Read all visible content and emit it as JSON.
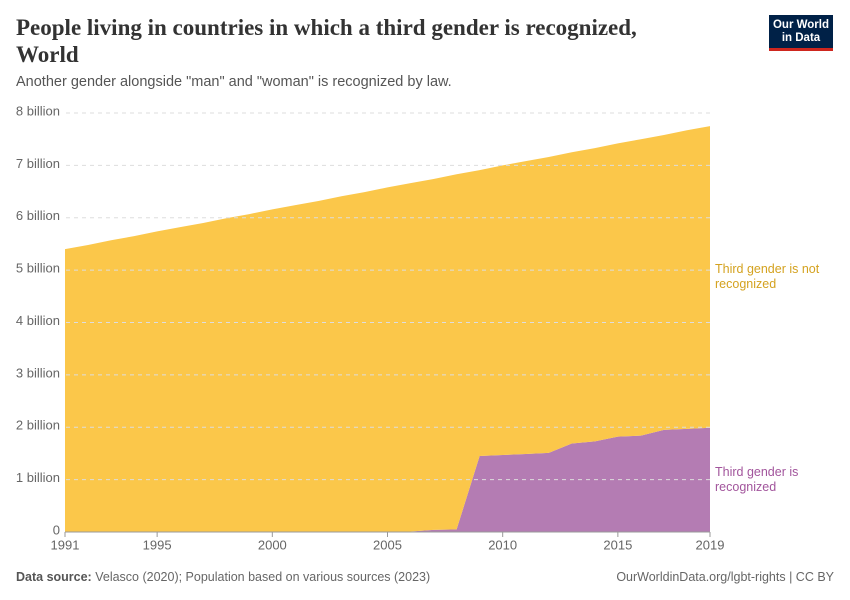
{
  "chart_data": {
    "type": "stacked_area",
    "title": "People living in countries in which a third gender is recognized, World",
    "subtitle": "Another gender alongside \"man\" and \"woman\" is recognized by law.",
    "logo": [
      "Our World",
      "in Data"
    ],
    "source_label": "Data source:",
    "source": "Velasco (2020); Population based on various sources (2023)",
    "footer_right": "OurWorldinData.org/lgbt-rights | CC BY",
    "x": [
      1991,
      1992,
      1993,
      1994,
      1995,
      1996,
      1997,
      1998,
      1999,
      2000,
      2001,
      2002,
      2003,
      2004,
      2005,
      2006,
      2007,
      2008,
      2009,
      2010,
      2011,
      2012,
      2013,
      2014,
      2015,
      2016,
      2017,
      2018,
      2019
    ],
    "series": [
      {
        "name": "Third gender is recognized",
        "color": "#b47cb3",
        "values": [
          0,
          0,
          0,
          0,
          0,
          0,
          0,
          0,
          0,
          0,
          0,
          0,
          0,
          0,
          0.005,
          0.01,
          0.04,
          0.05,
          1.45,
          1.47,
          1.49,
          1.51,
          1.69,
          1.73,
          1.82,
          1.84,
          1.95,
          1.97,
          1.99
        ]
      },
      {
        "name": "Third gender is not recognized",
        "color": "#fbc74a",
        "values": [
          5.4,
          5.48,
          5.57,
          5.65,
          5.74,
          5.82,
          5.9,
          5.99,
          6.07,
          6.16,
          6.24,
          6.32,
          6.41,
          6.49,
          6.575,
          6.65,
          6.7,
          6.78,
          5.46,
          5.53,
          5.59,
          5.65,
          5.56,
          5.6,
          5.6,
          5.66,
          5.63,
          5.7,
          5.76
        ]
      }
    ],
    "xlim": [
      1991,
      2019
    ],
    "xticks": [
      1991,
      1995,
      2000,
      2005,
      2010,
      2015,
      2019
    ],
    "ylim": [
      0,
      8
    ],
    "yticks": [
      0,
      {
        "value": 1,
        "label": "1 billion"
      },
      {
        "value": 2,
        "label": "2 billion"
      },
      {
        "value": 3,
        "label": "3 billion"
      },
      {
        "value": 4,
        "label": "4 billion"
      },
      {
        "value": 5,
        "label": "5 billion"
      },
      {
        "value": 6,
        "label": "6 billion"
      },
      {
        "value": 7,
        "label": "7 billion"
      },
      {
        "value": 8,
        "label": "8 billion"
      }
    ],
    "grid": true
  }
}
